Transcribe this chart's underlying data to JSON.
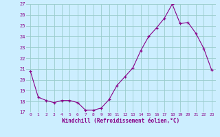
{
  "hours": [
    0,
    1,
    2,
    3,
    4,
    5,
    6,
    7,
    8,
    9,
    10,
    11,
    12,
    13,
    14,
    15,
    16,
    17,
    18,
    19,
    20,
    21,
    22,
    23
  ],
  "values": [
    20.8,
    18.4,
    18.1,
    17.9,
    18.1,
    18.1,
    17.9,
    17.2,
    17.2,
    17.4,
    18.2,
    19.5,
    20.3,
    21.1,
    22.7,
    24.0,
    24.8,
    25.7,
    27.0,
    25.2,
    25.3,
    24.3,
    22.9,
    20.9
  ],
  "xlabel": "Windchill (Refroidissement éolien,°C)",
  "ylim": [
    17,
    27
  ],
  "yticks": [
    17,
    18,
    19,
    20,
    21,
    22,
    23,
    24,
    25,
    26,
    27
  ],
  "xticks": [
    0,
    1,
    2,
    3,
    4,
    5,
    6,
    7,
    8,
    9,
    10,
    11,
    12,
    13,
    14,
    15,
    16,
    17,
    18,
    19,
    20,
    21,
    22,
    23
  ],
  "line_color": "#880088",
  "marker": "+",
  "bg_color": "#cceeff",
  "grid_color": "#99cccc",
  "tick_color": "#880088",
  "label_color": "#880088"
}
